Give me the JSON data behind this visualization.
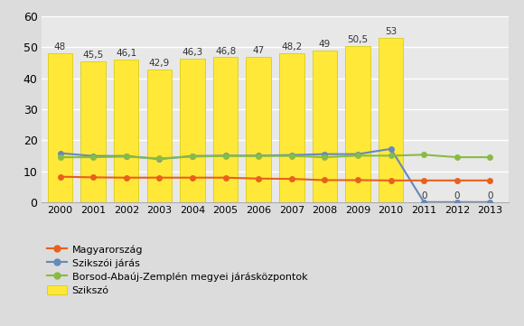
{
  "years": [
    2000,
    2001,
    2002,
    2003,
    2004,
    2005,
    2006,
    2007,
    2008,
    2009,
    2010,
    2011,
    2012,
    2013
  ],
  "szikszо_bars": [
    48,
    45.5,
    46.1,
    42.9,
    46.3,
    46.8,
    47,
    48.2,
    49,
    50.5,
    53,
    null,
    null,
    null
  ],
  "szikszо_labels": [
    "48",
    "45,5",
    "46,1",
    "42,9",
    "46,3",
    "46,8",
    "47",
    "48,2",
    "49",
    "50,5",
    "53",
    null,
    null,
    null
  ],
  "magyarorszag": [
    8.2,
    8.0,
    7.9,
    7.9,
    7.9,
    7.9,
    7.6,
    7.5,
    7.1,
    7.1,
    7.0,
    7.0,
    7.0,
    7.0
  ],
  "szikszoi_jaras": [
    15.8,
    14.9,
    14.9,
    13.9,
    14.9,
    15.0,
    15.0,
    15.2,
    15.5,
    15.5,
    17.2,
    0,
    0,
    0
  ],
  "szikszoi_jaras_labels": [
    null,
    null,
    null,
    null,
    null,
    null,
    null,
    null,
    null,
    null,
    null,
    "0",
    "0",
    "0"
  ],
  "borsod": [
    14.5,
    14.5,
    14.7,
    14.1,
    14.7,
    14.9,
    14.9,
    14.9,
    14.5,
    15.0,
    15.0,
    15.3,
    14.5,
    14.5
  ],
  "bar_color": "#ffe838",
  "bar_edge_color": "#d4c800",
  "magyarorszag_color": "#e8601c",
  "szikszoi_jaras_color": "#6688bb",
  "borsod_color": "#88bb44",
  "bg_color": "#dcdcdc",
  "plot_bg_color": "#e8e8e8",
  "grid_color": "#ffffff",
  "ylim": [
    0,
    60
  ],
  "yticks": [
    0,
    10,
    20,
    30,
    40,
    50,
    60
  ]
}
